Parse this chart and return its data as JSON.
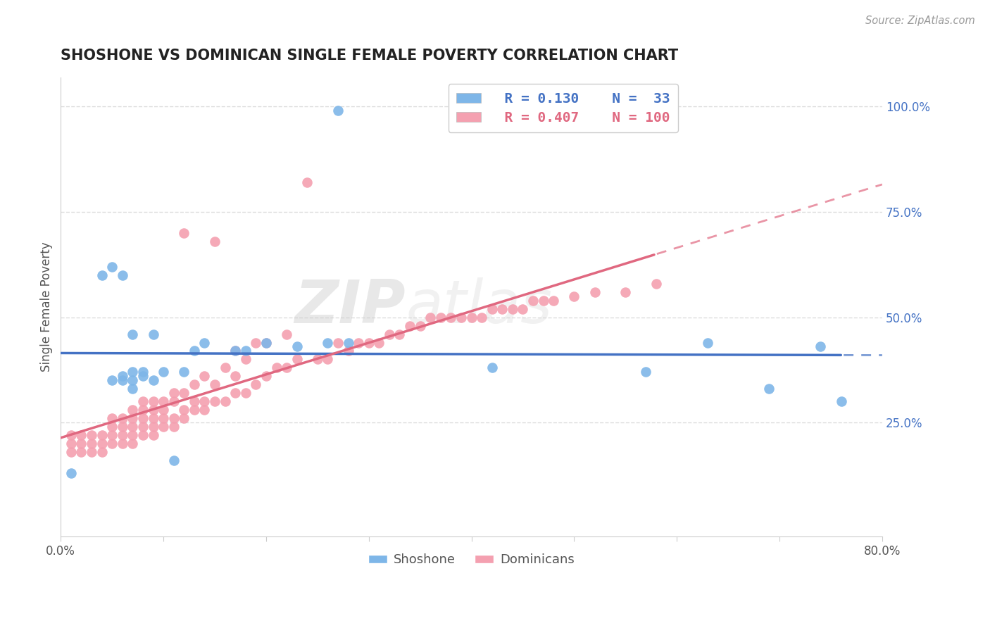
{
  "title": "SHOSHONE VS DOMINICAN SINGLE FEMALE POVERTY CORRELATION CHART",
  "source": "Source: ZipAtlas.com",
  "ylabel": "Single Female Poverty",
  "xlim": [
    0.0,
    0.8
  ],
  "ylim": [
    -0.02,
    1.07
  ],
  "xticks": [
    0.0,
    0.1,
    0.2,
    0.3,
    0.4,
    0.5,
    0.6,
    0.7,
    0.8
  ],
  "xticklabels": [
    "0.0%",
    "",
    "",
    "",
    "",
    "",
    "",
    "",
    "80.0%"
  ],
  "yticks_right": [
    0.25,
    0.5,
    0.75,
    1.0
  ],
  "ytick_right_labels": [
    "25.0%",
    "50.0%",
    "75.0%",
    "100.0%"
  ],
  "shoshone_color": "#7EB6E8",
  "dominican_color": "#F4A0B0",
  "shoshone_line_color": "#4472C4",
  "dominican_line_color": "#E06880",
  "R_shoshone": 0.13,
  "N_shoshone": 33,
  "R_dominican": 0.407,
  "N_dominican": 100,
  "watermark": "ZIPAtlas",
  "grid_color": "#DDDDDD",
  "shoshone_x": [
    0.01,
    0.04,
    0.05,
    0.05,
    0.06,
    0.06,
    0.06,
    0.07,
    0.07,
    0.07,
    0.07,
    0.08,
    0.08,
    0.09,
    0.09,
    0.1,
    0.11,
    0.12,
    0.13,
    0.14,
    0.17,
    0.18,
    0.2,
    0.23,
    0.26,
    0.27,
    0.28,
    0.42,
    0.57,
    0.63,
    0.69,
    0.74,
    0.76
  ],
  "shoshone_y": [
    0.13,
    0.6,
    0.62,
    0.35,
    0.6,
    0.35,
    0.36,
    0.33,
    0.35,
    0.37,
    0.46,
    0.36,
    0.37,
    0.35,
    0.46,
    0.37,
    0.16,
    0.37,
    0.42,
    0.44,
    0.42,
    0.42,
    0.44,
    0.43,
    0.44,
    0.99,
    0.44,
    0.38,
    0.37,
    0.44,
    0.33,
    0.43,
    0.3
  ],
  "dominican_x": [
    0.01,
    0.01,
    0.01,
    0.02,
    0.02,
    0.02,
    0.03,
    0.03,
    0.03,
    0.04,
    0.04,
    0.04,
    0.05,
    0.05,
    0.05,
    0.05,
    0.06,
    0.06,
    0.06,
    0.06,
    0.07,
    0.07,
    0.07,
    0.07,
    0.07,
    0.08,
    0.08,
    0.08,
    0.08,
    0.08,
    0.09,
    0.09,
    0.09,
    0.09,
    0.09,
    0.1,
    0.1,
    0.1,
    0.1,
    0.11,
    0.11,
    0.11,
    0.11,
    0.12,
    0.12,
    0.12,
    0.12,
    0.13,
    0.13,
    0.13,
    0.14,
    0.14,
    0.14,
    0.15,
    0.15,
    0.15,
    0.16,
    0.16,
    0.17,
    0.17,
    0.17,
    0.18,
    0.18,
    0.19,
    0.19,
    0.2,
    0.2,
    0.21,
    0.22,
    0.22,
    0.23,
    0.24,
    0.25,
    0.26,
    0.27,
    0.28,
    0.29,
    0.3,
    0.31,
    0.32,
    0.33,
    0.34,
    0.35,
    0.36,
    0.37,
    0.38,
    0.39,
    0.4,
    0.41,
    0.42,
    0.43,
    0.44,
    0.45,
    0.46,
    0.47,
    0.48,
    0.5,
    0.52,
    0.55,
    0.58
  ],
  "dominican_y": [
    0.18,
    0.2,
    0.22,
    0.18,
    0.2,
    0.22,
    0.18,
    0.2,
    0.22,
    0.18,
    0.2,
    0.22,
    0.2,
    0.22,
    0.24,
    0.26,
    0.2,
    0.22,
    0.24,
    0.26,
    0.2,
    0.22,
    0.24,
    0.26,
    0.28,
    0.22,
    0.24,
    0.26,
    0.28,
    0.3,
    0.22,
    0.24,
    0.26,
    0.28,
    0.3,
    0.24,
    0.26,
    0.28,
    0.3,
    0.24,
    0.26,
    0.3,
    0.32,
    0.26,
    0.28,
    0.32,
    0.7,
    0.28,
    0.3,
    0.34,
    0.28,
    0.3,
    0.36,
    0.3,
    0.34,
    0.68,
    0.3,
    0.38,
    0.32,
    0.36,
    0.42,
    0.32,
    0.4,
    0.34,
    0.44,
    0.36,
    0.44,
    0.38,
    0.38,
    0.46,
    0.4,
    0.82,
    0.4,
    0.4,
    0.44,
    0.42,
    0.44,
    0.44,
    0.44,
    0.46,
    0.46,
    0.48,
    0.48,
    0.5,
    0.5,
    0.5,
    0.5,
    0.5,
    0.5,
    0.52,
    0.52,
    0.52,
    0.52,
    0.54,
    0.54,
    0.54,
    0.55,
    0.56,
    0.56,
    0.58
  ]
}
